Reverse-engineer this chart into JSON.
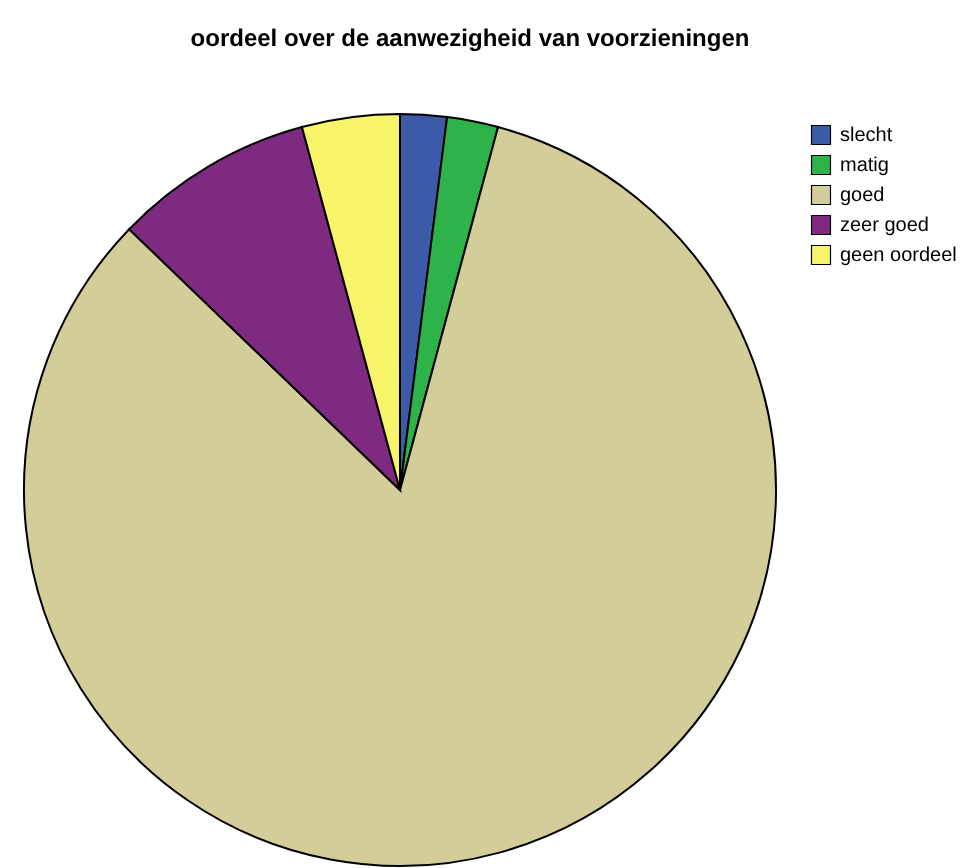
{
  "chart_data": {
    "type": "pie",
    "title": "oordeel over de aanwezigheid van voorzieningen",
    "categories": [
      "slecht",
      "matig",
      "goed",
      "zeer goed",
      "geen oordeel"
    ],
    "values": [
      2,
      2.2,
      83,
      8.6,
      4.2
    ],
    "colors": [
      "#3b5ba8",
      "#2db34a",
      "#d3cd99",
      "#7e2a80",
      "#f9f56a"
    ],
    "legend": "top right"
  }
}
